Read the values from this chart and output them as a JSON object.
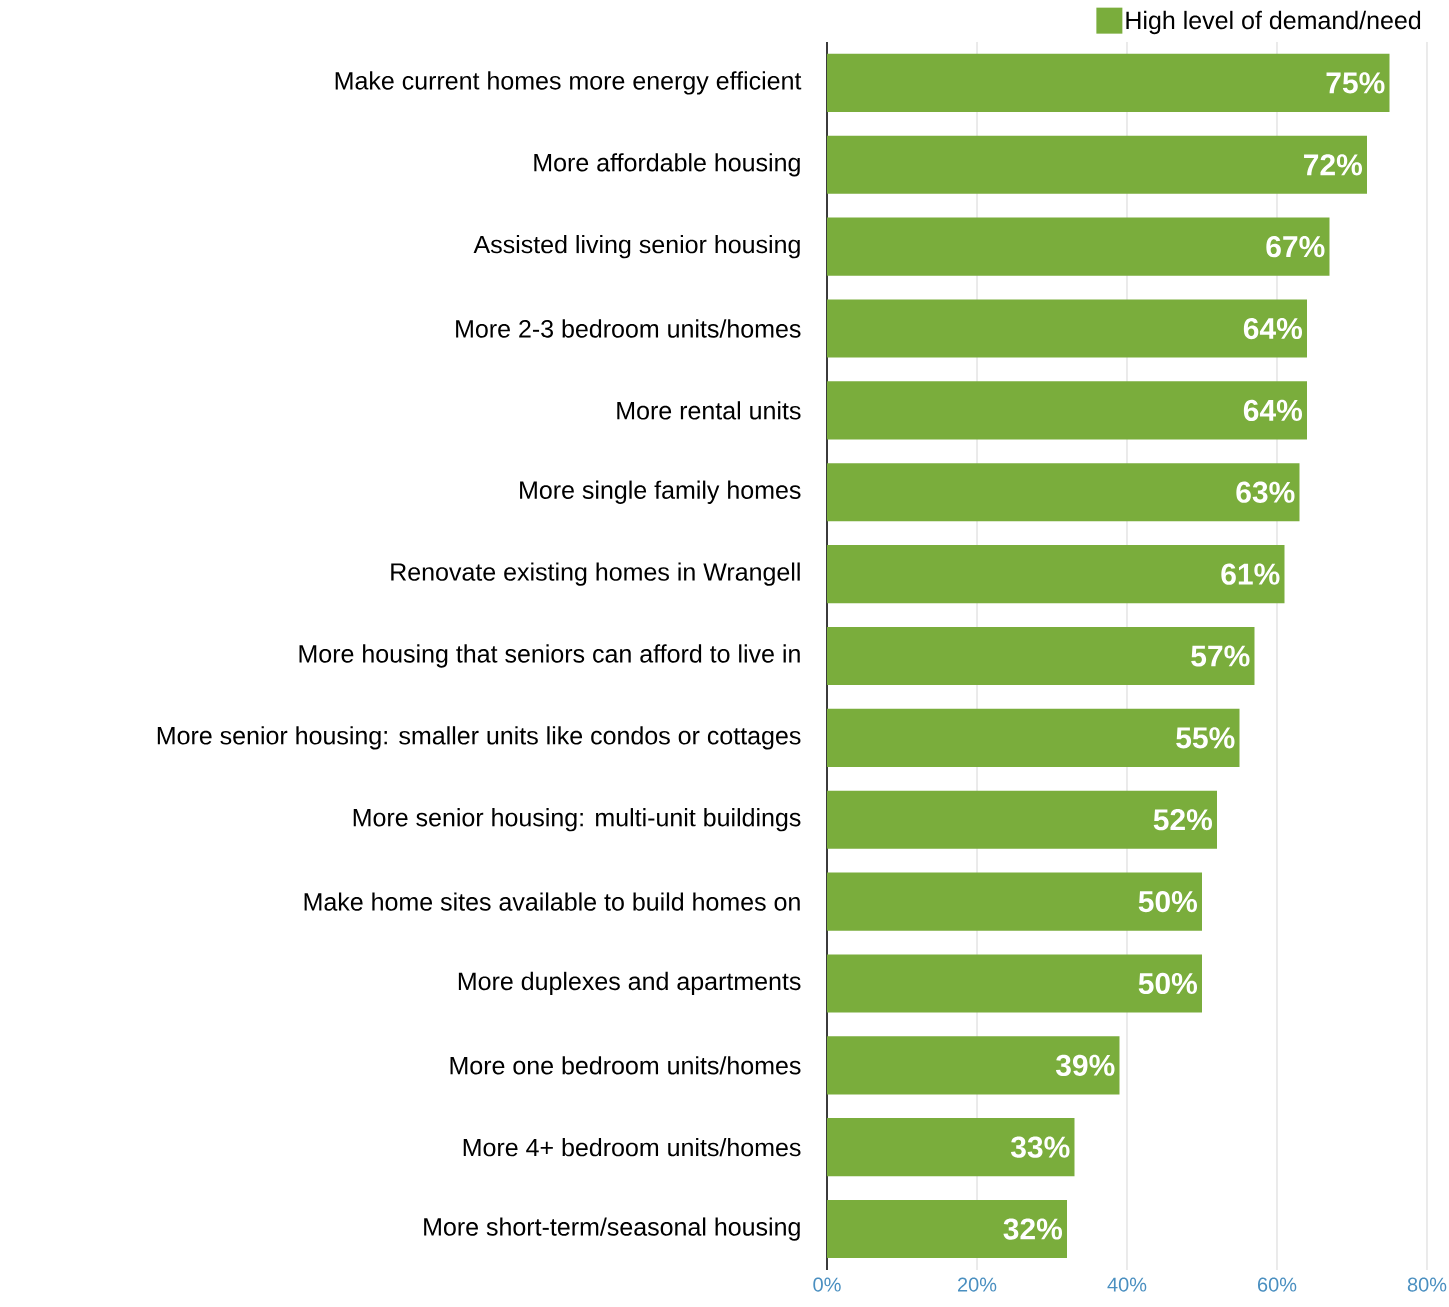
{
  "chart_data": {
    "type": "bar",
    "orientation": "horizontal",
    "categories": [
      "Make current homes more energy efficient",
      "More affordable housing",
      "Assisted living senior housing",
      "More 2-3 bedroom units/homes",
      "More rental units",
      "More single family homes",
      "Renovate existing homes in Wrangell",
      "More housing that seniors can afford to live in",
      "More senior housing: smaller units like condos or cottages",
      "More senior housing: multi-unit buildings",
      "Make home sites available to build homes on",
      "More duplexes and apartments",
      "More one bedroom units/homes",
      "More 4+ bedroom units/homes",
      "More short-term/seasonal housing"
    ],
    "series": [
      {
        "name": "High level of demand/need",
        "color": "#7aad3c",
        "values": [
          75,
          72,
          67,
          64,
          64,
          63,
          61,
          57,
          55,
          52,
          50,
          50,
          39,
          33,
          32
        ],
        "value_labels": [
          "75%",
          "72%",
          "67%",
          "64%",
          "64%",
          "63%",
          "61%",
          "57%",
          "55%",
          "52%",
          "50%",
          "50%",
          "39%",
          "33%",
          "32%"
        ]
      }
    ],
    "xlim": [
      0,
      80
    ],
    "xticks": [
      {
        "value": 0,
        "label": "0%"
      },
      {
        "value": 20,
        "label": "20%"
      },
      {
        "value": 40,
        "label": "40%"
      },
      {
        "value": 60,
        "label": "60%"
      },
      {
        "value": 80,
        "label": "80%"
      }
    ],
    "grid": "x",
    "legend": "top right"
  }
}
